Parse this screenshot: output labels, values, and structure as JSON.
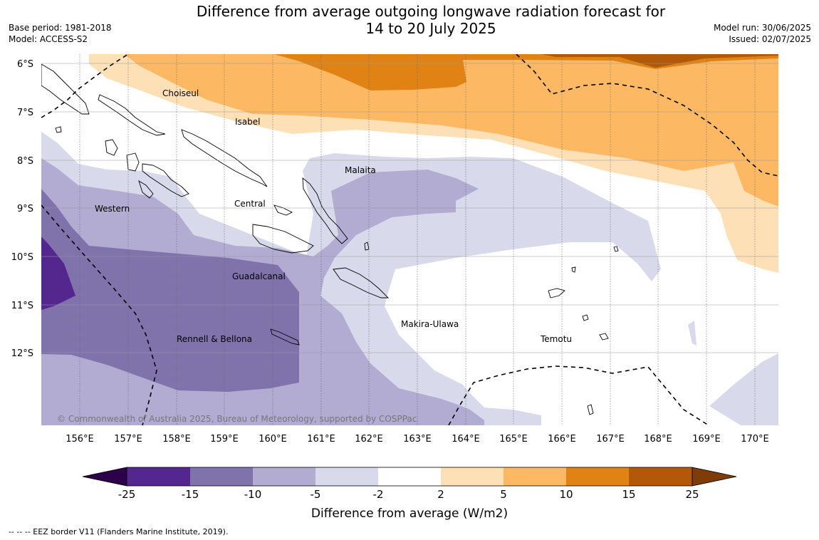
{
  "title_line1": "Difference from average outgoing longwave radiation forecast for",
  "title_line2": "14 to 20 July 2025",
  "base_period": "Base period: 1981-2018",
  "model": "Model: ACCESS-S2",
  "model_run": "Model run: 30/06/2025",
  "issued": "Issued: 02/07/2025",
  "copyright": "© Commonwealth of Australia 2025, Bureau of Meteorology, supported by COSPPac",
  "lat_labels": [
    "6°S",
    "7°S",
    "8°S",
    "9°S",
    "10°S",
    "11°S",
    "12°S"
  ],
  "lon_labels": [
    "156°E",
    "157°E",
    "158°E",
    "159°E",
    "160°E",
    "161°E",
    "162°E",
    "163°E",
    "164°E",
    "165°E",
    "166°E",
    "167°E",
    "168°E",
    "169°E",
    "170°E"
  ],
  "regions": {
    "choiseul": "Choiseul",
    "isabel": "Isabel",
    "malaita": "Malaita",
    "western": "Western",
    "central": "Central",
    "guadalcanal": "Guadalcanal",
    "makira": "Makira-Ulawa",
    "temotu": "Temotu",
    "rennell": "Rennell & Bellona"
  },
  "colorbar": {
    "ticks": [
      "-25",
      "-15",
      "-10",
      "-5",
      "-2",
      "2",
      "5",
      "10",
      "15",
      "25"
    ],
    "colors": [
      "#54278f",
      "#8073ac",
      "#b2abd2",
      "#d8daeb",
      "#ffffff",
      "#fee0b6",
      "#fdb863",
      "#e08214",
      "#b35806"
    ],
    "under_color": "#2d004b",
    "over_color": "#7f3b08",
    "label": "Difference from average (W/m2)"
  },
  "eez_legend": "--  --  -- EEZ border V11 (Flanders Marine Institute, 2019)."
}
